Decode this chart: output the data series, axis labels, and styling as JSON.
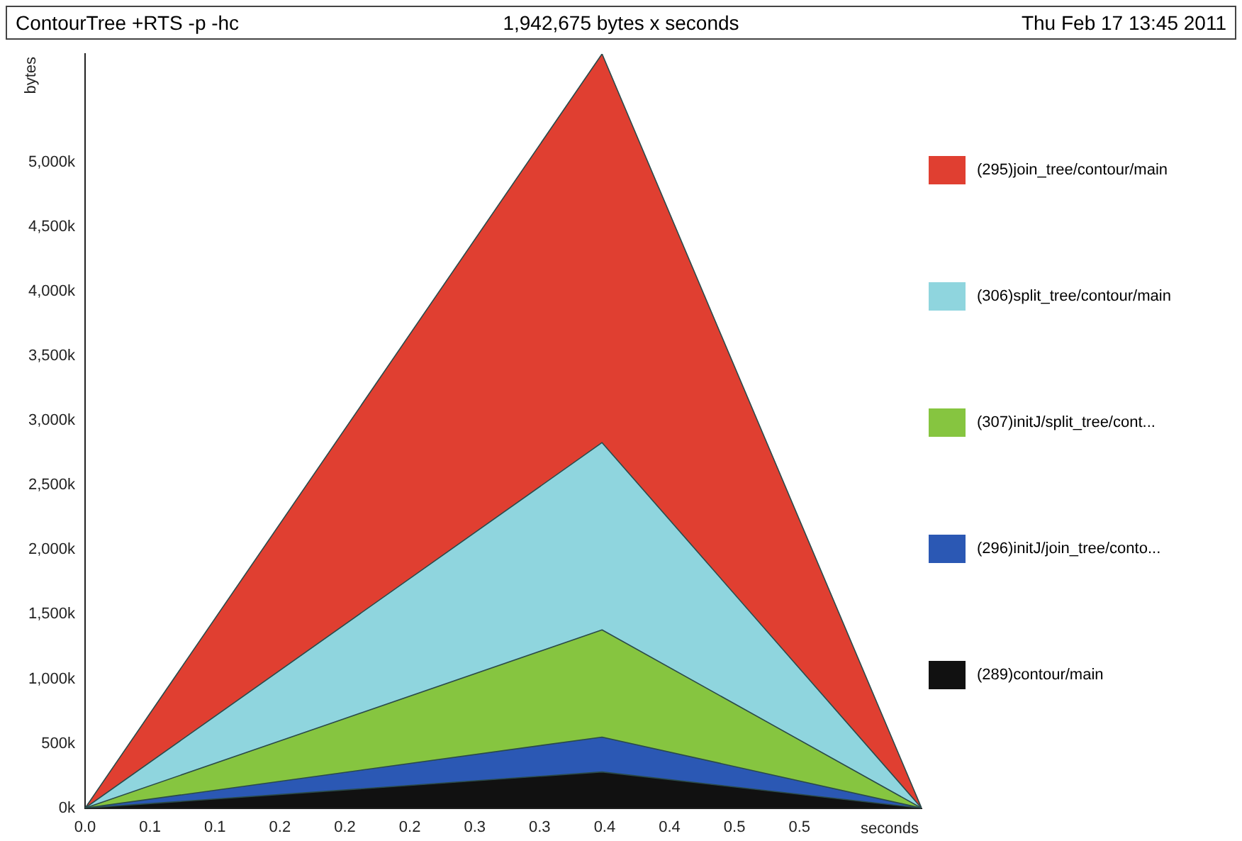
{
  "chart_data": {
    "type": "area",
    "title": "ContourTree +RTS -p -hc",
    "subtitle": "1,942,675 bytes x seconds",
    "annotations": [
      "Thu Feb 17 13:45 2011"
    ],
    "xlabel": "seconds",
    "ylabel": "bytes",
    "x": [
      0,
      0.398,
      0.644
    ],
    "series": [
      {
        "name": "(289)contour/main",
        "color": "#111111",
        "values": [
          0,
          280,
          0
        ]
      },
      {
        "name": "(296)initJ/join_tree/conto...",
        "color": "#2b58b4",
        "values": [
          0,
          270,
          0
        ]
      },
      {
        "name": "(307)initJ/split_tree/cont...",
        "color": "#86c540",
        "values": [
          0,
          830,
          0
        ]
      },
      {
        "name": "(306)split_tree/contour/main",
        "color": "#8fd5de",
        "values": [
          0,
          1450,
          0
        ]
      },
      {
        "name": "(295)join_tree/contour/main",
        "color": "#e03f31",
        "values": [
          0,
          3010,
          0
        ]
      }
    ],
    "stacked": true,
    "legend": "right",
    "grid": false,
    "xlim": [
      0,
      0.644
    ],
    "xticks": [
      {
        "value": 0,
        "label": "0.0"
      },
      {
        "value": 0.05,
        "label": "0.1"
      },
      {
        "value": 0.1,
        "label": "0.1"
      },
      {
        "value": 0.15,
        "label": "0.2"
      },
      {
        "value": 0.2,
        "label": "0.2"
      },
      {
        "value": 0.25,
        "label": "0.2"
      },
      {
        "value": 0.3,
        "label": "0.3"
      },
      {
        "value": 0.35,
        "label": "0.3"
      },
      {
        "value": 0.4,
        "label": "0.4"
      },
      {
        "value": 0.45,
        "label": "0.4"
      },
      {
        "value": 0.5,
        "label": "0.5"
      },
      {
        "value": 0.55,
        "label": "0.5"
      }
    ],
    "ylim": [
      0,
      5840
    ],
    "yticks": [
      {
        "value": 0,
        "label": "0k"
      },
      {
        "value": 500,
        "label": "500k"
      },
      {
        "value": 1000,
        "label": "1,000k"
      },
      {
        "value": 1500,
        "label": "1,500k"
      },
      {
        "value": 2000,
        "label": "2,000k"
      },
      {
        "value": 2500,
        "label": "2,500k"
      },
      {
        "value": 3000,
        "label": "3,000k"
      },
      {
        "value": 3500,
        "label": "3,500k"
      },
      {
        "value": 4000,
        "label": "4,000k"
      },
      {
        "value": 4500,
        "label": "4,500k"
      },
      {
        "value": 5000,
        "label": "5,000k"
      }
    ]
  }
}
